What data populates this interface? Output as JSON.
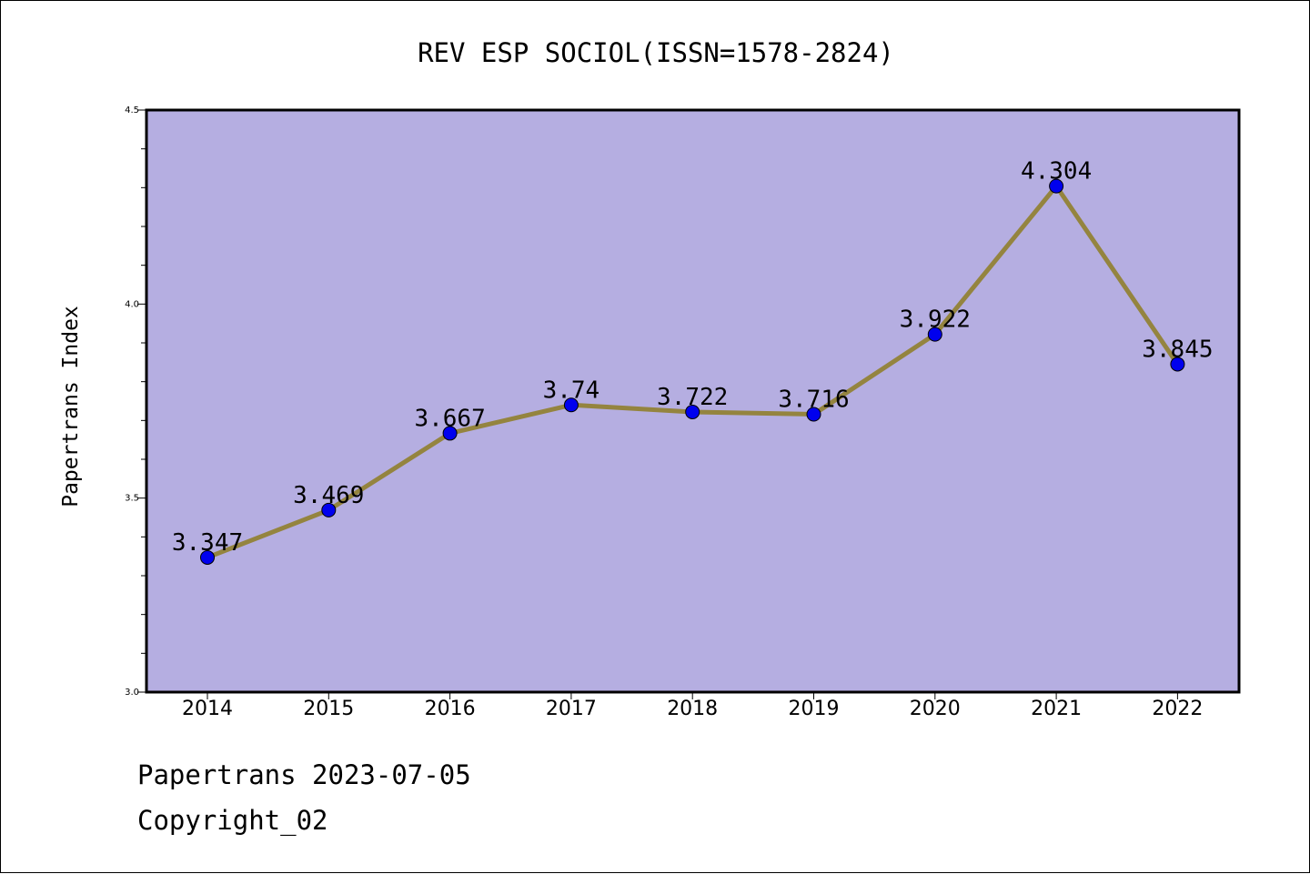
{
  "chart_data": {
    "type": "line",
    "title": "REV ESP SOCIOL(ISSN=1578-2824)",
    "xlabel": "",
    "ylabel": "Papertrans Index",
    "categories": [
      "2014",
      "2015",
      "2016",
      "2017",
      "2018",
      "2019",
      "2020",
      "2021",
      "2022"
    ],
    "series": [
      {
        "values": [
          3.347,
          3.469,
          3.667,
          3.74,
          3.722,
          3.716,
          3.922,
          4.304,
          3.845
        ],
        "labels": [
          "3.347",
          "3.469",
          "3.667",
          "3.74",
          "3.722",
          "3.716",
          "3.922",
          "4.304",
          "3.845"
        ]
      }
    ],
    "ylim": [
      3.0,
      4.5
    ],
    "y_ticks": [
      "3.0",
      "3.5",
      "4.0",
      "4.5"
    ],
    "grid": false,
    "colors": {
      "plot_background": "#b5aee1",
      "line": "#94843f",
      "marker": "#0000ee"
    }
  },
  "footer": {
    "line1": "Papertrans 2023-07-05",
    "line2": "Copyright_02"
  }
}
